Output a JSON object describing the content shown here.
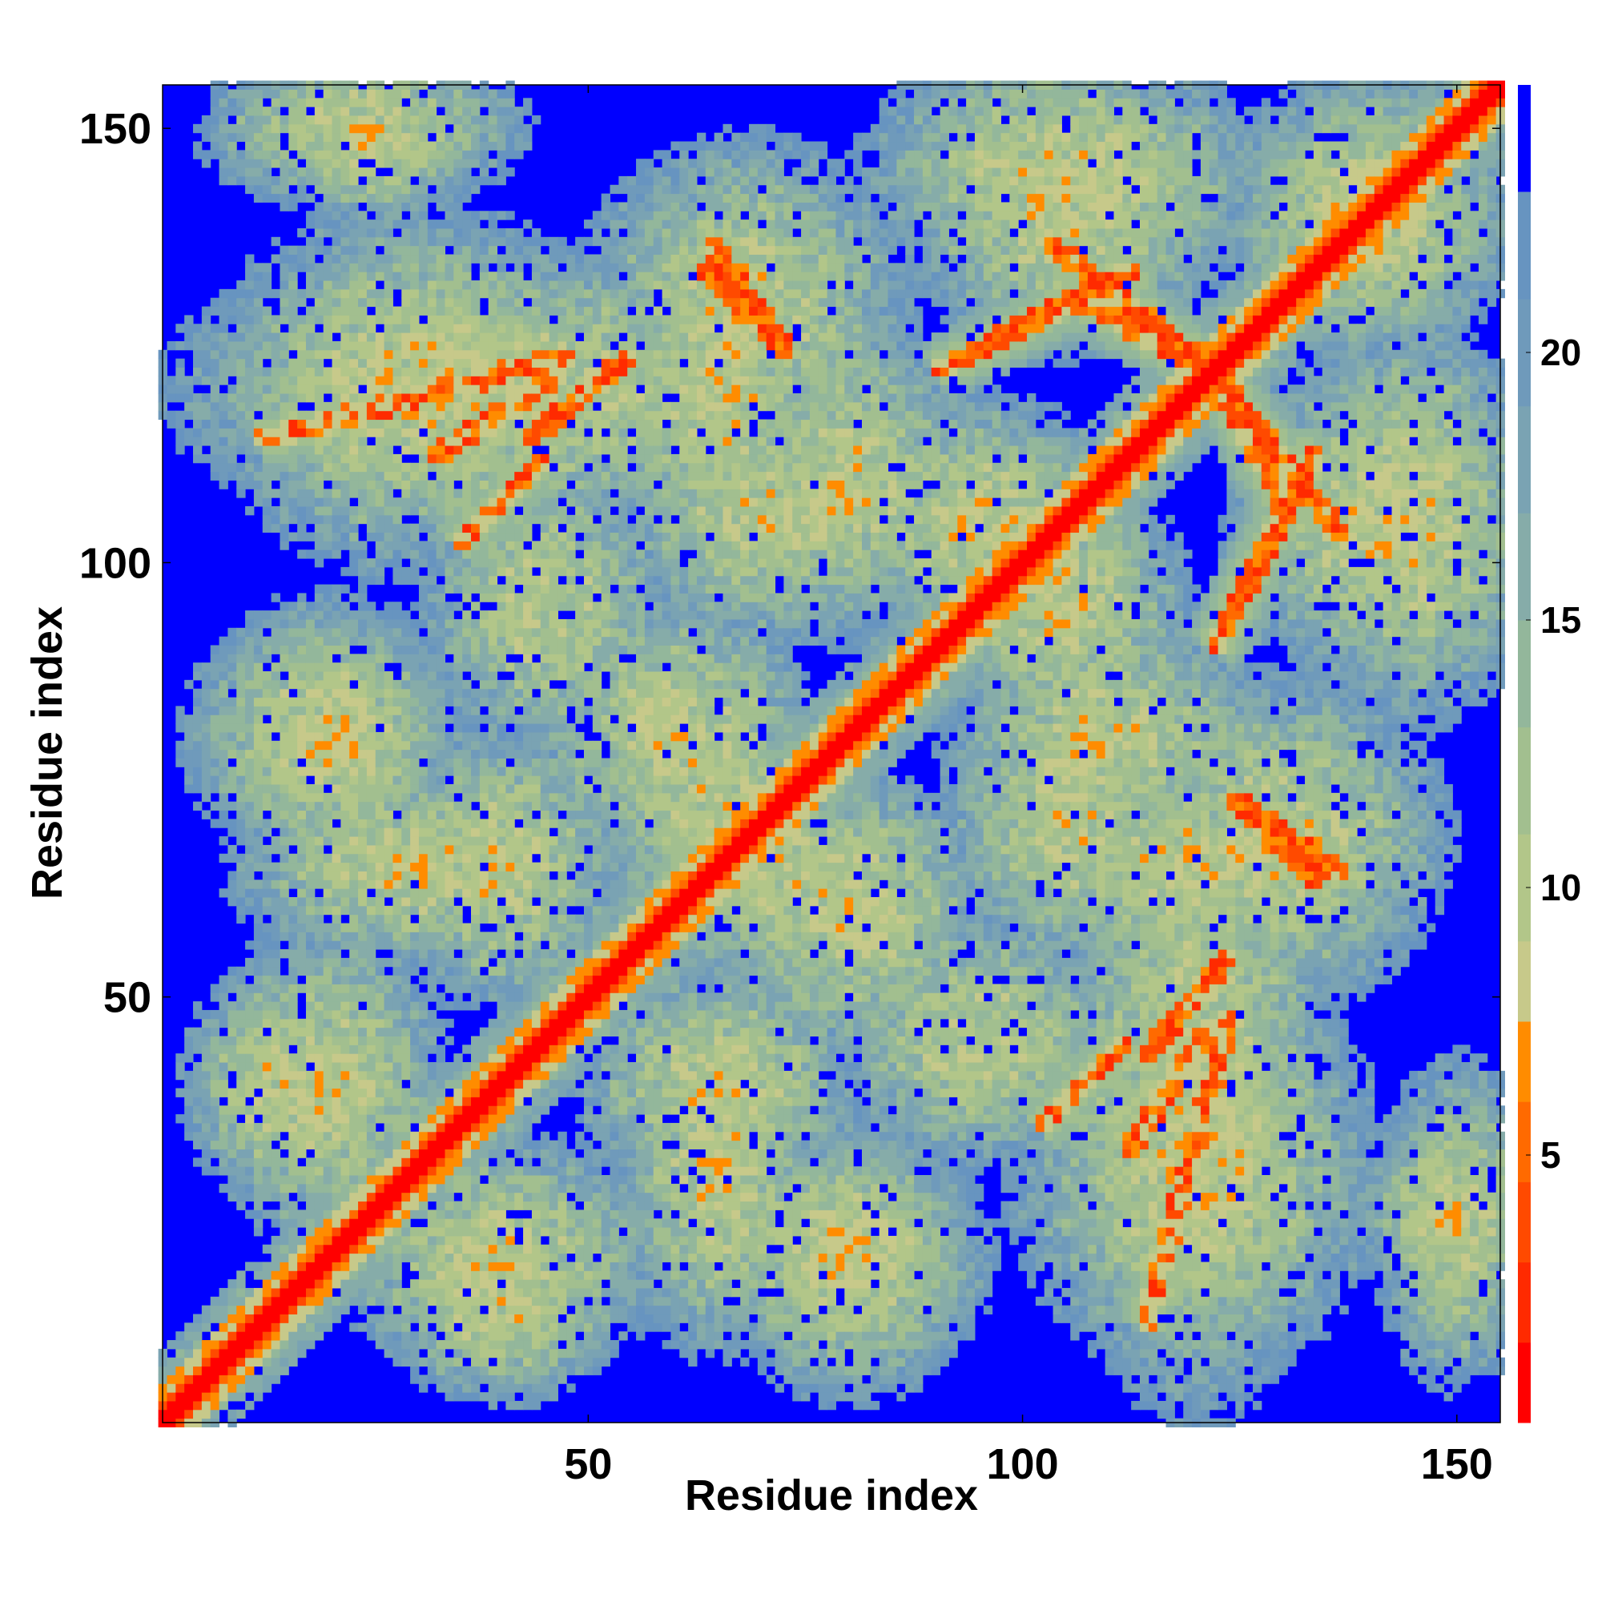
{
  "chart_data": {
    "type": "heatmap",
    "title": "",
    "xlabel": "Residue index",
    "ylabel": "Residue index",
    "xlim": [
      1,
      155
    ],
    "ylim": [
      1,
      155
    ],
    "n_residues": 155,
    "x_ticks": [
      50,
      100,
      150
    ],
    "y_ticks": [
      50,
      100,
      150
    ],
    "colorbar": {
      "ticks": [
        5,
        10,
        15,
        20
      ],
      "range": [
        0,
        23
      ],
      "bins": [
        {
          "from": 0,
          "to": 1.5,
          "color": "#ff0000"
        },
        {
          "from": 1.5,
          "to": 3,
          "color": "#ff2a00"
        },
        {
          "from": 3,
          "to": 4.5,
          "color": "#ff4a00"
        },
        {
          "from": 4.5,
          "to": 6,
          "color": "#ff6a00"
        },
        {
          "from": 6,
          "to": 7.5,
          "color": "#ff8c00"
        },
        {
          "from": 7.5,
          "to": 9,
          "color": "#c7c98a"
        },
        {
          "from": 9,
          "to": 11,
          "color": "#b2c689"
        },
        {
          "from": 11,
          "to": 13,
          "color": "#a2bf8f"
        },
        {
          "from": 13,
          "to": 15,
          "color": "#93b79b"
        },
        {
          "from": 15,
          "to": 17,
          "color": "#86aca9"
        },
        {
          "from": 17,
          "to": 19,
          "color": "#7aa3b3"
        },
        {
          "from": 19,
          "to": 21,
          "color": "#6f9abb"
        },
        {
          "from": 21,
          "to": 23,
          "color": "#6794c0"
        }
      ],
      "above_color": "#0000ff"
    },
    "colors": {
      "contact": "#ff0000",
      "near": "#ff8c00",
      "mid": "#b2c689",
      "far": "#6f9abb",
      "background": "#0000ff"
    },
    "diagonal_contacts": [
      {
        "range": [
          5,
          45
        ],
        "rank": 0
      }
    ],
    "contact_lines": [
      {
        "from": [
          12,
          114
        ],
        "to": [
          48,
          124
        ],
        "strength": 0.6
      },
      {
        "from": [
          32,
          112
        ],
        "to": [
          47,
          122
        ],
        "strength": 0.7
      },
      {
        "from": [
          63,
          134
        ],
        "to": [
          72,
          125
        ],
        "strength": 0.9
      },
      {
        "from": [
          90,
          122
        ],
        "to": [
          113,
          134
        ],
        "strength": 0.8
      },
      {
        "from": [
          130,
          107
        ],
        "to": [
          122,
          122
        ],
        "strength": 0.7
      },
      {
        "from": [
          122,
          122
        ],
        "to": [
          137,
          103
        ],
        "strength": 0.9
      },
      {
        "from": [
          124,
          73
        ],
        "to": [
          137,
          64
        ],
        "strength": 0.9
      },
      {
        "from": [
          114,
          43
        ],
        "to": [
          124,
          55
        ],
        "strength": 0.8
      },
      {
        "from": [
          102,
          35
        ],
        "to": [
          112,
          45
        ],
        "strength": 0.6
      },
      {
        "from": [
          72,
          126
        ],
        "to": [
          65,
          135
        ],
        "strength": 0.8
      }
    ],
    "contact_clusters": [
      {
        "center": [
          24,
          150
        ],
        "spread": [
          16,
          8
        ]
      },
      {
        "center": [
          40,
          120
        ],
        "spread": [
          32,
          14
        ]
      },
      {
        "center": [
          68,
          130
        ],
        "spread": [
          16,
          16
        ]
      },
      {
        "center": [
          105,
          145
        ],
        "spread": [
          20,
          12
        ]
      },
      {
        "center": [
          140,
          140
        ],
        "spread": [
          14,
          14
        ]
      },
      {
        "center": [
          140,
          105
        ],
        "spread": [
          14,
          16
        ]
      },
      {
        "center": [
          70,
          105
        ],
        "spread": [
          14,
          12
        ]
      },
      {
        "center": [
          95,
          105
        ],
        "spread": [
          14,
          12
        ]
      },
      {
        "center": [
          20,
          80
        ],
        "spread": [
          14,
          12
        ]
      },
      {
        "center": [
          60,
          80
        ],
        "spread": [
          14,
          14
        ]
      },
      {
        "center": [
          110,
          80
        ],
        "spread": [
          16,
          12
        ]
      },
      {
        "center": [
          120,
          65
        ],
        "spread": [
          18,
          12
        ]
      },
      {
        "center": [
          70,
          65
        ],
        "spread": [
          14,
          12
        ]
      },
      {
        "center": [
          30,
          65
        ],
        "spread": [
          18,
          10
        ]
      },
      {
        "center": [
          15,
          40
        ],
        "spread": [
          10,
          12
        ]
      },
      {
        "center": [
          40,
          20
        ],
        "spread": [
          16,
          12
        ]
      },
      {
        "center": [
          80,
          20
        ],
        "spread": [
          14,
          12
        ]
      },
      {
        "center": [
          120,
          30
        ],
        "spread": [
          18,
          20
        ]
      },
      {
        "center": [
          148,
          25
        ],
        "spread": [
          8,
          8
        ]
      },
      {
        "center": [
          95,
          45
        ],
        "spread": [
          14,
          12
        ]
      },
      {
        "center": [
          65,
          40
        ],
        "spread": [
          14,
          12
        ]
      }
    ]
  }
}
